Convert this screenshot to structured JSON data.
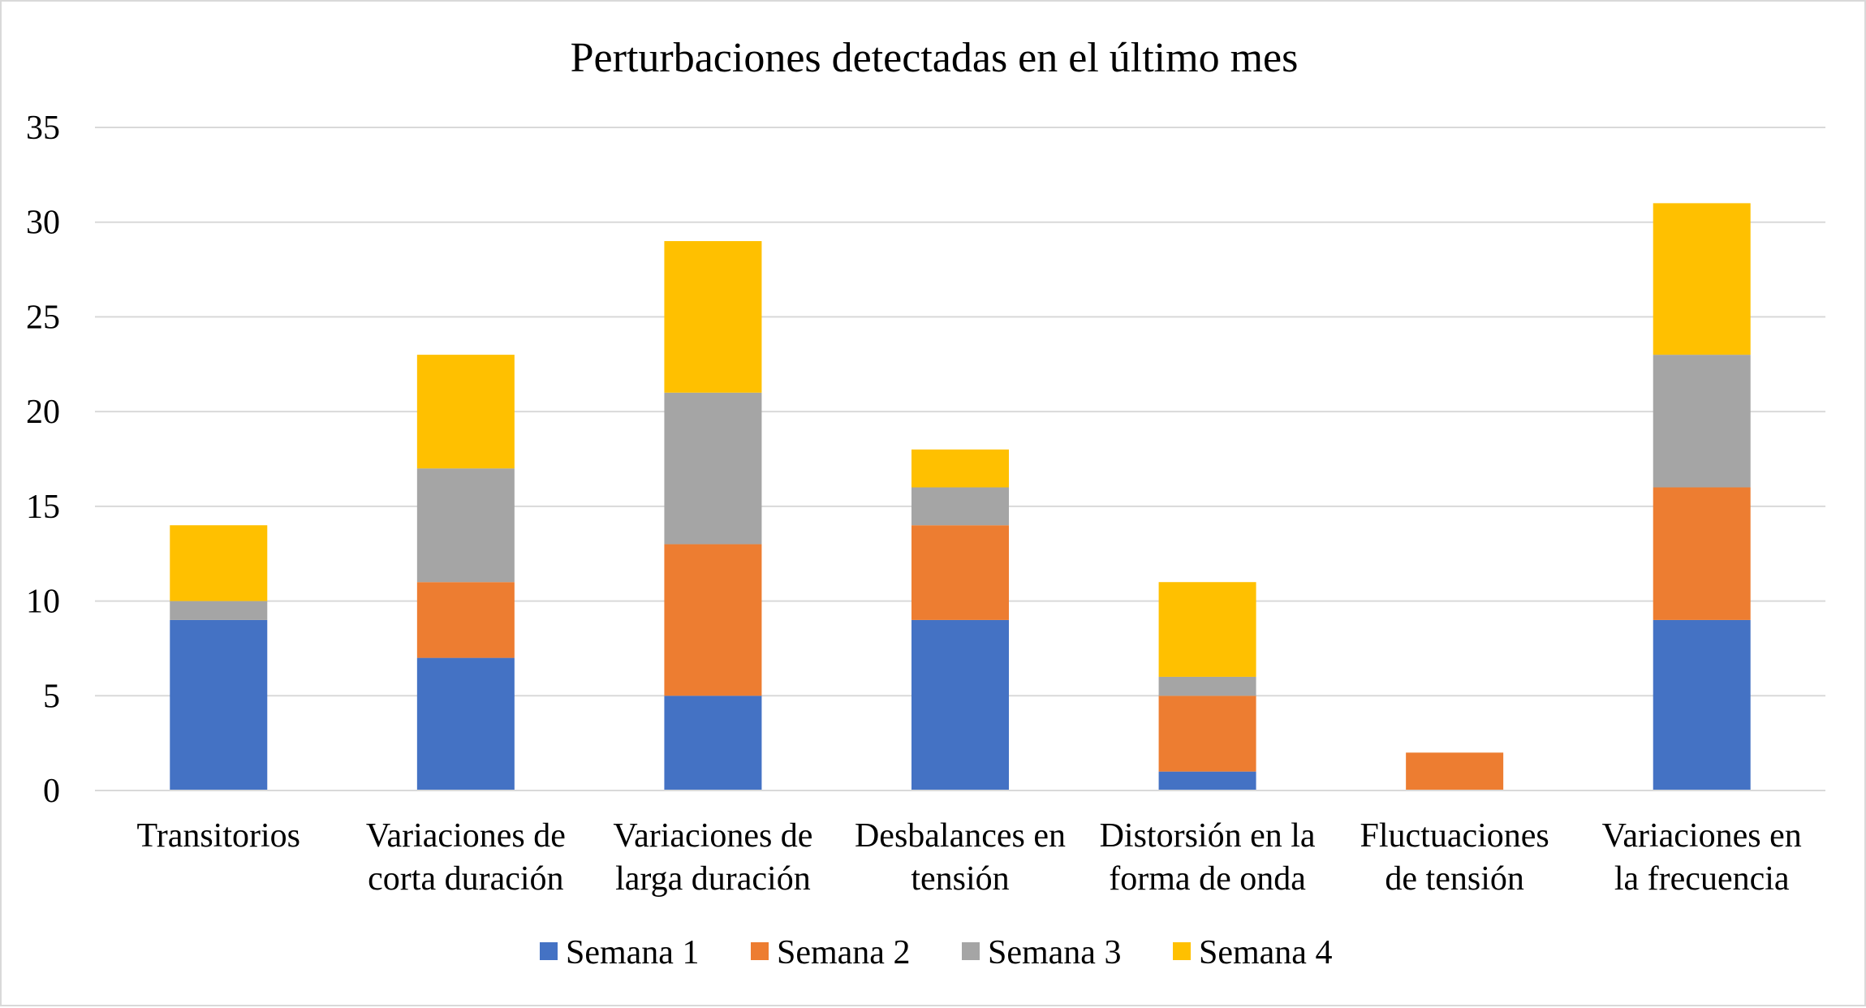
{
  "chart_data": {
    "type": "bar",
    "stacked": true,
    "title": "Perturbaciones detectadas en el último mes",
    "xlabel": "",
    "ylabel": "",
    "ylim": [
      0,
      35
    ],
    "yticks": [
      0,
      5,
      10,
      15,
      20,
      25,
      30,
      35
    ],
    "grid": true,
    "legend_position": "bottom",
    "categories": [
      [
        "Transitorios"
      ],
      [
        "Variaciones de",
        "corta duración"
      ],
      [
        "Variaciones de",
        "larga duración"
      ],
      [
        "Desbalances en",
        "tensión"
      ],
      [
        "Distorsión en la",
        "forma de onda"
      ],
      [
        "Fluctuaciones",
        "de tensión"
      ],
      [
        "Variaciones en",
        "la frecuencia"
      ]
    ],
    "series": [
      {
        "name": "Semana 1",
        "color": "#4472C4",
        "values": [
          9,
          7,
          5,
          9,
          1,
          0,
          9
        ]
      },
      {
        "name": "Semana 2",
        "color": "#ED7D31",
        "values": [
          0,
          4,
          8,
          5,
          4,
          2,
          7
        ]
      },
      {
        "name": "Semana 3",
        "color": "#A5A5A5",
        "values": [
          1,
          6,
          8,
          2,
          1,
          0,
          7
        ]
      },
      {
        "name": "Semana 4",
        "color": "#FFC000",
        "values": [
          4,
          6,
          8,
          2,
          5,
          0,
          8
        ]
      }
    ]
  }
}
